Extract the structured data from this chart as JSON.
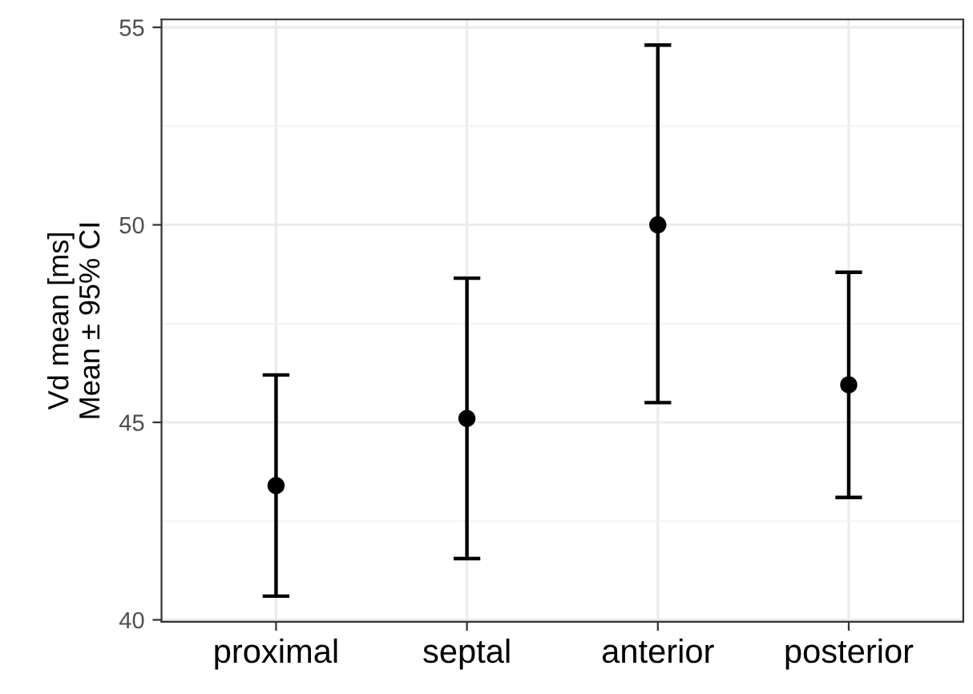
{
  "chart_data": {
    "type": "scatter",
    "ylabel": "Vd mean [ms]\nMean ± 95% CI",
    "categories": [
      "proximal",
      "septal",
      "anterior",
      "posterior"
    ],
    "values": [
      43.4,
      45.1,
      50.0,
      45.95
    ],
    "errors": [
      [
        40.6,
        46.2
      ],
      [
        41.55,
        48.65
      ],
      [
        45.5,
        54.55
      ],
      [
        43.1,
        48.8
      ]
    ],
    "color": "#000000",
    "marker": "circle",
    "ylim": [
      39.95,
      55.2
    ],
    "yticks": [
      40,
      45,
      50,
      55
    ],
    "grid": true,
    "legend": false
  }
}
